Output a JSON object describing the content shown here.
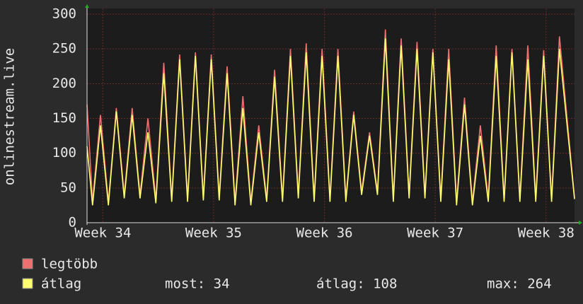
{
  "chart_data": {
    "type": "line",
    "y_label": "onlinestream.live",
    "x": [
      0,
      0.35,
      0.85,
      1.35,
      1.85,
      2.35,
      2.85,
      3.35,
      3.85,
      4.35,
      4.85,
      5.35,
      5.85,
      6.35,
      6.85,
      7.35,
      7.85,
      8.35,
      8.85,
      9.35,
      9.85,
      10.35,
      10.85,
      11.35,
      11.85,
      12.35,
      12.85,
      13.35,
      13.85,
      14.35,
      14.85,
      15.35,
      15.85,
      16.35,
      16.85,
      17.35,
      17.85,
      18.35,
      18.85,
      19.35,
      19.85,
      20.35,
      20.85,
      21.35,
      21.85,
      22.35,
      22.85,
      23.35,
      23.85,
      24.35,
      24.85,
      25.35,
      25.85,
      26.35,
      26.85,
      27.35,
      27.85,
      28.35,
      28.85,
      29.35,
      29.85,
      30.8
    ],
    "series": [
      {
        "name": "legtöbb",
        "color": "#f07070",
        "values": [
          170,
          30,
          155,
          30,
          165,
          40,
          165,
          40,
          150,
          33,
          230,
          35,
          242,
          35,
          245,
          37,
          242,
          37,
          225,
          30,
          182,
          30,
          140,
          35,
          220,
          35,
          250,
          40,
          258,
          35,
          250,
          35,
          250,
          35,
          160,
          45,
          130,
          45,
          278,
          35,
          265,
          40,
          260,
          40,
          250,
          35,
          250,
          30,
          180,
          30,
          140,
          35,
          255,
          35,
          250,
          35,
          255,
          35,
          248,
          35,
          268,
          36
        ]
      },
      {
        "name": "átlag",
        "color": "#ffff70",
        "values": [
          110,
          25,
          140,
          25,
          160,
          35,
          155,
          35,
          130,
          28,
          215,
          30,
          235,
          30,
          240,
          32,
          235,
          32,
          215,
          25,
          165,
          25,
          130,
          30,
          210,
          30,
          240,
          35,
          245,
          30,
          240,
          30,
          240,
          30,
          155,
          40,
          125,
          40,
          265,
          30,
          255,
          35,
          250,
          35,
          245,
          30,
          235,
          25,
          170,
          25,
          125,
          30,
          240,
          30,
          245,
          30,
          235,
          30,
          240,
          30,
          250,
          34
        ]
      }
    ],
    "xlim": [
      0,
      30.8
    ],
    "xticks": [
      {
        "value": 1,
        "label": "Week 34"
      },
      {
        "value": 8,
        "label": "Week 35"
      },
      {
        "value": 15,
        "label": "Week 36"
      },
      {
        "value": 22,
        "label": "Week 37"
      },
      {
        "value": 29,
        "label": "Week 38"
      }
    ],
    "ylim": [
      0,
      300
    ],
    "yticks": [
      0,
      50,
      100,
      150,
      200,
      250,
      300
    ],
    "grid": true,
    "stats": [
      "most: 34",
      "átlag: 108",
      "max: 264"
    ]
  }
}
